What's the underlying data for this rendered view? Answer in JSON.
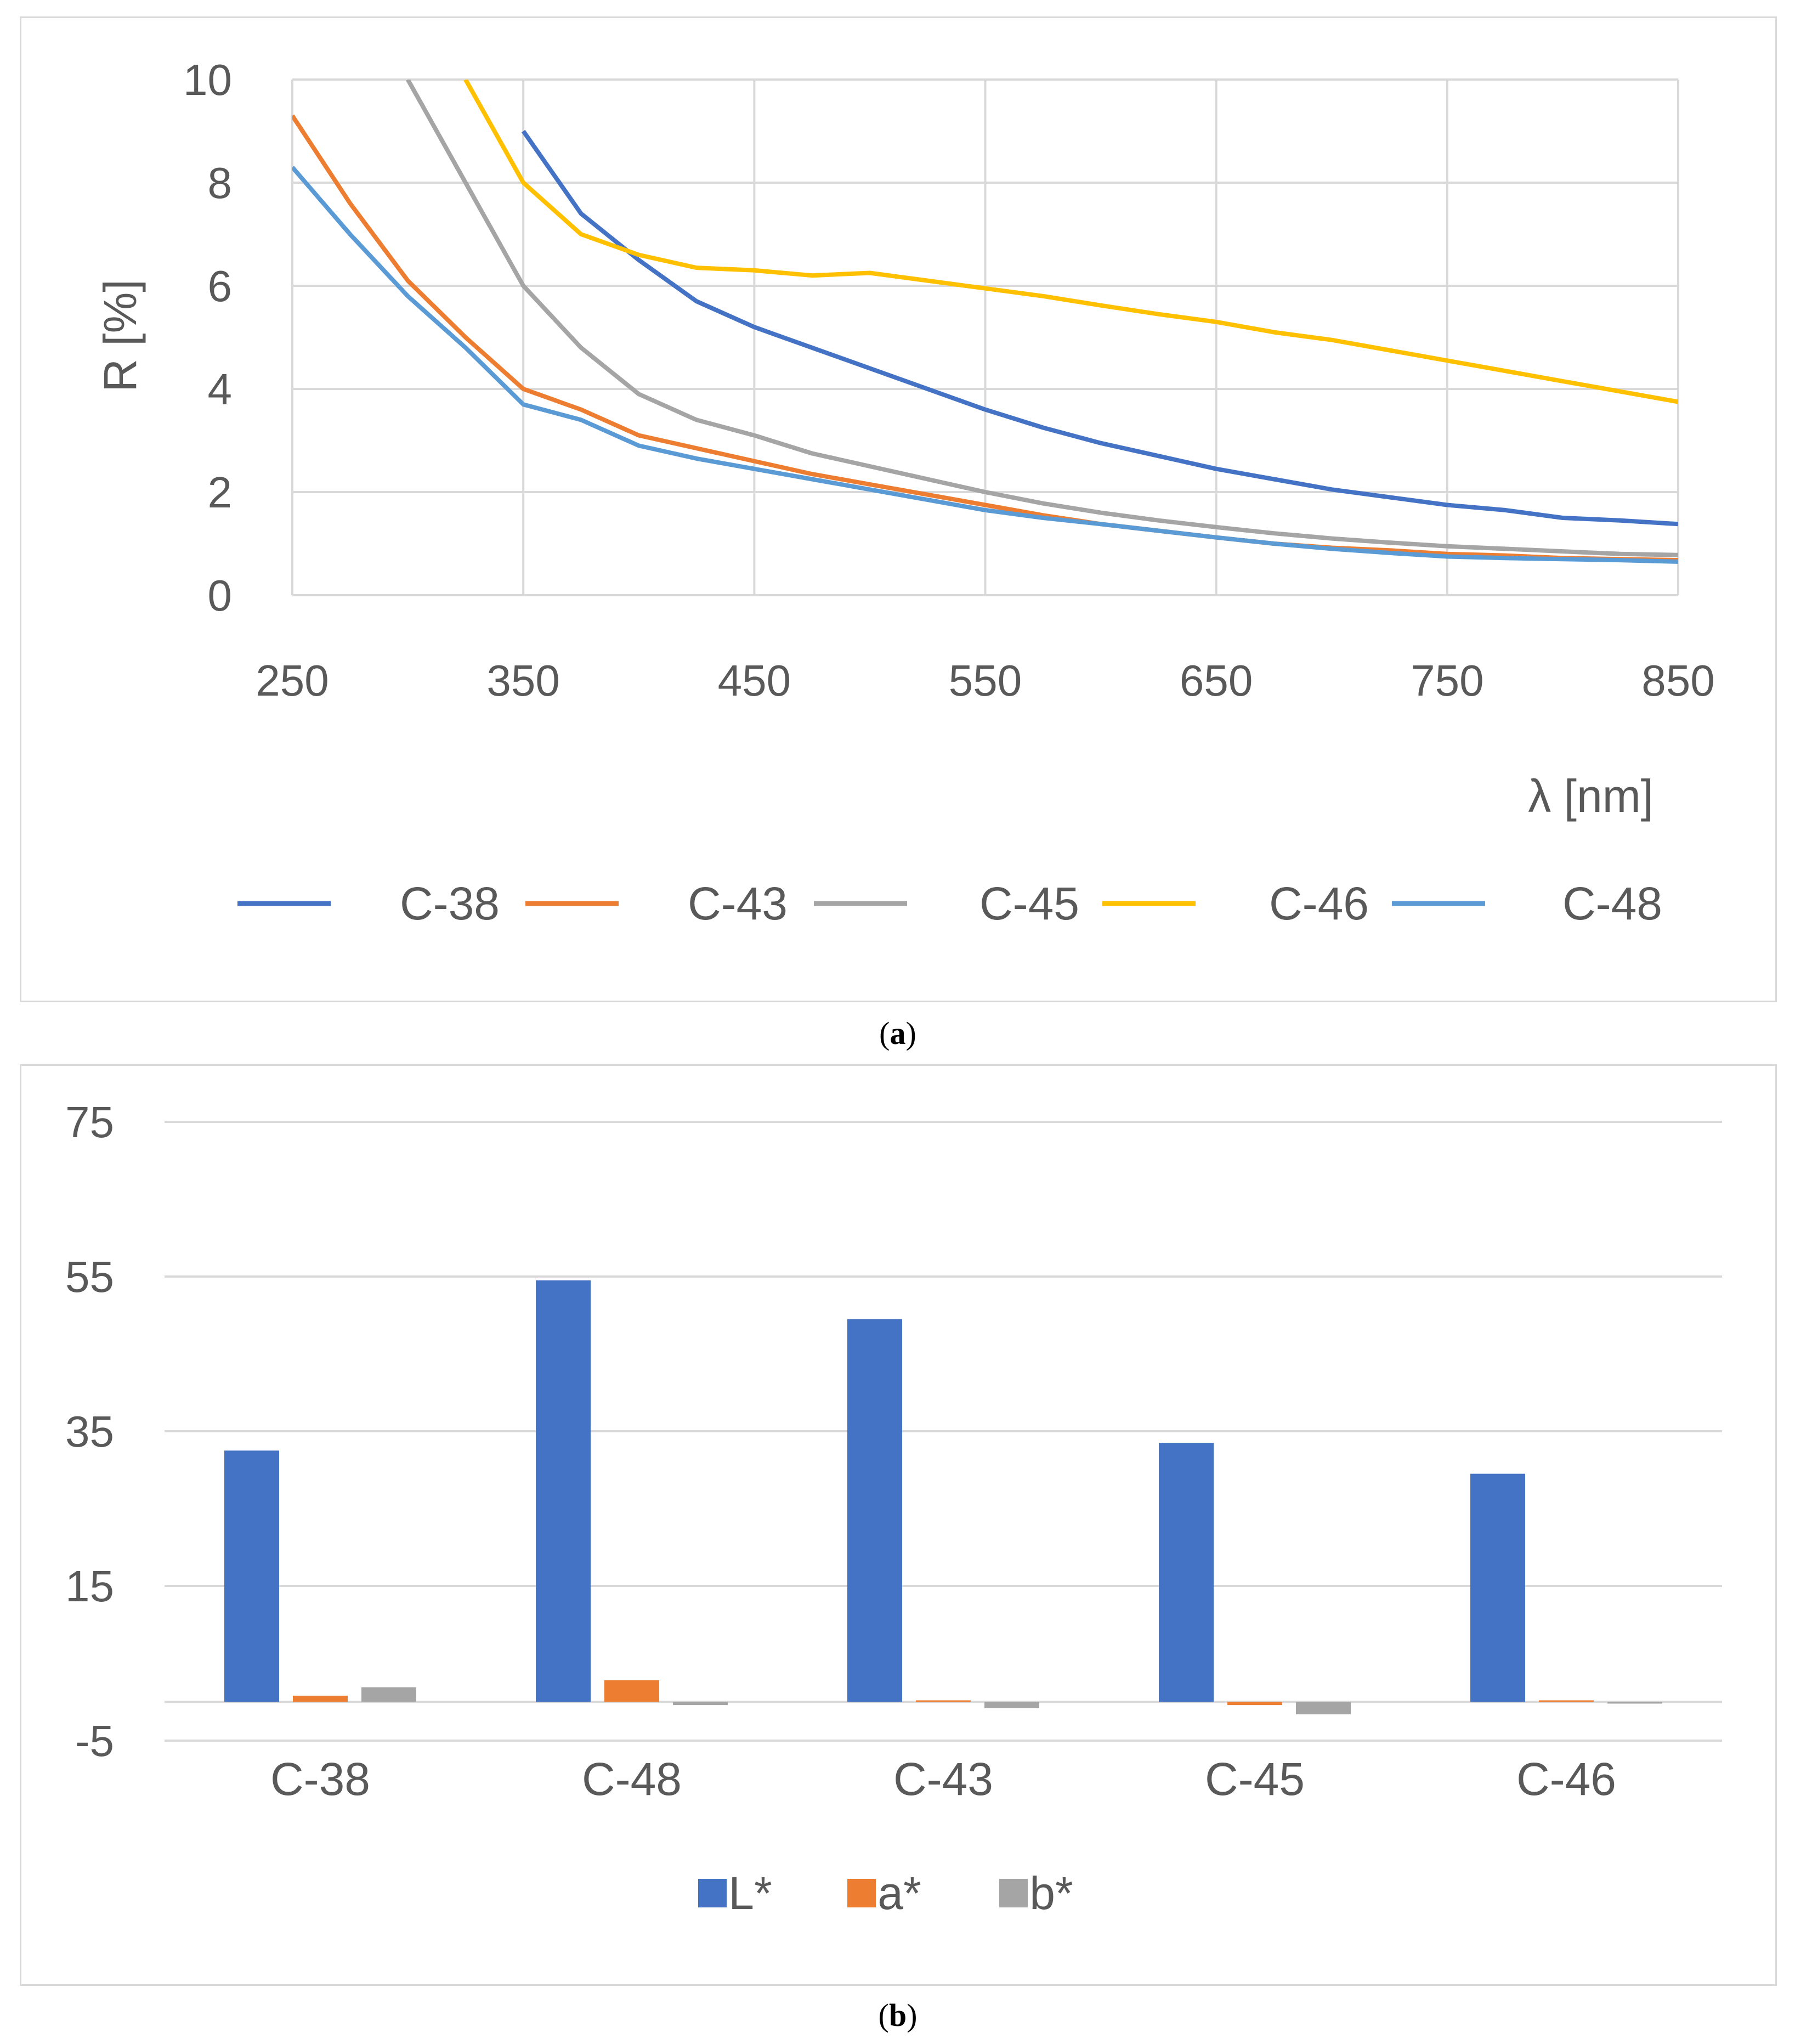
{
  "colors": {
    "c38": "#4472c4",
    "c43": "#ed7d31",
    "c45": "#a5a5a5",
    "c46": "#ffc000",
    "c48": "#5b9bd5",
    "grid": "#d9d9d9",
    "text": "#595959"
  },
  "captions": {
    "a": "a",
    "b": "b"
  },
  "chart_data": [
    {
      "type": "line",
      "panel": "a",
      "xlabel": "λ [nm]",
      "ylabel": "R [%]",
      "xlim": [
        250,
        850
      ],
      "ylim": [
        0,
        10
      ],
      "xticks": [
        "250",
        "350",
        "450",
        "550",
        "650",
        "750",
        "850"
      ],
      "yticks": [
        "0",
        "2",
        "4",
        "6",
        "8",
        "10"
      ],
      "legend_position": "bottom",
      "x": [
        250,
        275,
        300,
        325,
        350,
        375,
        400,
        425,
        450,
        475,
        500,
        525,
        550,
        575,
        600,
        625,
        650,
        675,
        700,
        725,
        750,
        775,
        800,
        825,
        850
      ],
      "series": [
        {
          "name": "C-38",
          "color_key": "c38",
          "values": [
            null,
            null,
            null,
            null,
            9.0,
            7.4,
            6.5,
            5.7,
            5.2,
            4.8,
            4.4,
            4.0,
            3.6,
            3.25,
            2.95,
            2.7,
            2.45,
            2.25,
            2.05,
            1.9,
            1.75,
            1.65,
            1.5,
            1.45,
            1.38
          ]
        },
        {
          "name": "C-43",
          "color_key": "c43",
          "values": [
            9.3,
            7.6,
            6.1,
            5.0,
            4.0,
            3.6,
            3.1,
            2.85,
            2.6,
            2.35,
            2.15,
            1.95,
            1.75,
            1.55,
            1.38,
            1.25,
            1.12,
            1.0,
            0.92,
            0.87,
            0.8,
            0.77,
            0.72,
            0.7,
            0.68
          ]
        },
        {
          "name": "C-45",
          "color_key": "c45",
          "values": [
            null,
            null,
            10.0,
            8.0,
            6.0,
            4.8,
            3.9,
            3.4,
            3.1,
            2.75,
            2.5,
            2.25,
            2.0,
            1.78,
            1.6,
            1.45,
            1.32,
            1.2,
            1.1,
            1.02,
            0.95,
            0.9,
            0.85,
            0.8,
            0.78
          ]
        },
        {
          "name": "C-46",
          "color_key": "c46",
          "values": [
            null,
            null,
            null,
            10.0,
            8.0,
            7.0,
            6.6,
            6.35,
            6.3,
            6.2,
            6.25,
            6.1,
            5.95,
            5.8,
            5.62,
            5.45,
            5.3,
            5.1,
            4.95,
            4.75,
            4.55,
            4.35,
            4.15,
            3.95,
            3.75
          ]
        },
        {
          "name": "C-48",
          "color_key": "c48",
          "values": [
            8.3,
            7.0,
            5.8,
            4.8,
            3.7,
            3.4,
            2.9,
            2.65,
            2.45,
            2.25,
            2.05,
            1.85,
            1.65,
            1.5,
            1.38,
            1.25,
            1.12,
            1.0,
            0.9,
            0.82,
            0.75,
            0.72,
            0.7,
            0.68,
            0.65
          ]
        }
      ]
    },
    {
      "type": "bar",
      "panel": "b",
      "categories": [
        "C-38",
        "C-48",
        "C-43",
        "C-45",
        "C-46"
      ],
      "ylim": [
        -5,
        75
      ],
      "yticks": [
        "-5",
        "15",
        "35",
        "55",
        "75"
      ],
      "legend_position": "bottom",
      "series": [
        {
          "name": "L*",
          "color_key": "c38",
          "values": [
            32.5,
            54.5,
            49.5,
            33.5,
            29.5
          ]
        },
        {
          "name": "a*",
          "color_key": "c43",
          "values": [
            0.8,
            2.8,
            0.0,
            -0.4,
            0.0
          ]
        },
        {
          "name": "b*",
          "color_key": "c45",
          "values": [
            1.9,
            -0.4,
            -0.8,
            -1.6,
            -0.2
          ]
        }
      ]
    }
  ]
}
